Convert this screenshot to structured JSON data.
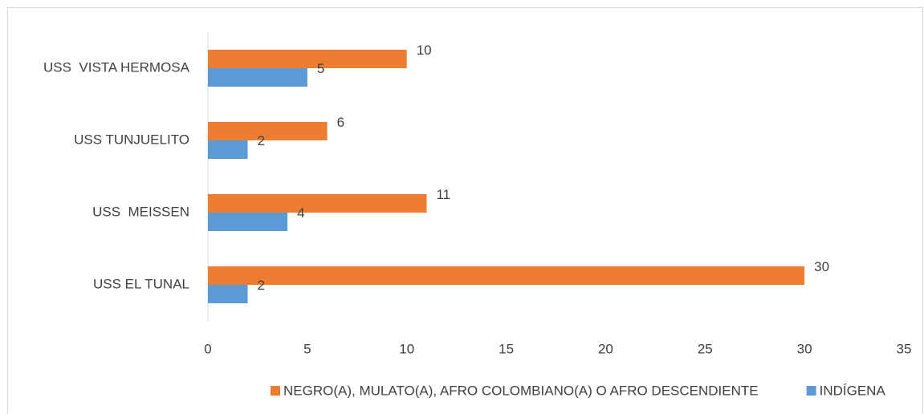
{
  "chart_data": {
    "type": "bar",
    "orientation": "horizontal",
    "categories": [
      "USS EL TUNAL",
      "USS  MEISSEN",
      "USS TUNJUELITO",
      "USS  VISTA HERMOSA"
    ],
    "series": [
      {
        "name": "NEGRO(A), MULATO(A), AFRO COLOMBIANO(A) O AFRO DESCENDIENTE",
        "color": "#ed7d31",
        "values": [
          30,
          11,
          6,
          10
        ]
      },
      {
        "name": "INDÍGENA",
        "color": "#5b9bd5",
        "values": [
          2,
          4,
          2,
          5
        ]
      }
    ],
    "xlim": [
      0,
      35
    ],
    "xticks": [
      0,
      5,
      10,
      15,
      20,
      25,
      30,
      35
    ],
    "legend": "bottom"
  }
}
